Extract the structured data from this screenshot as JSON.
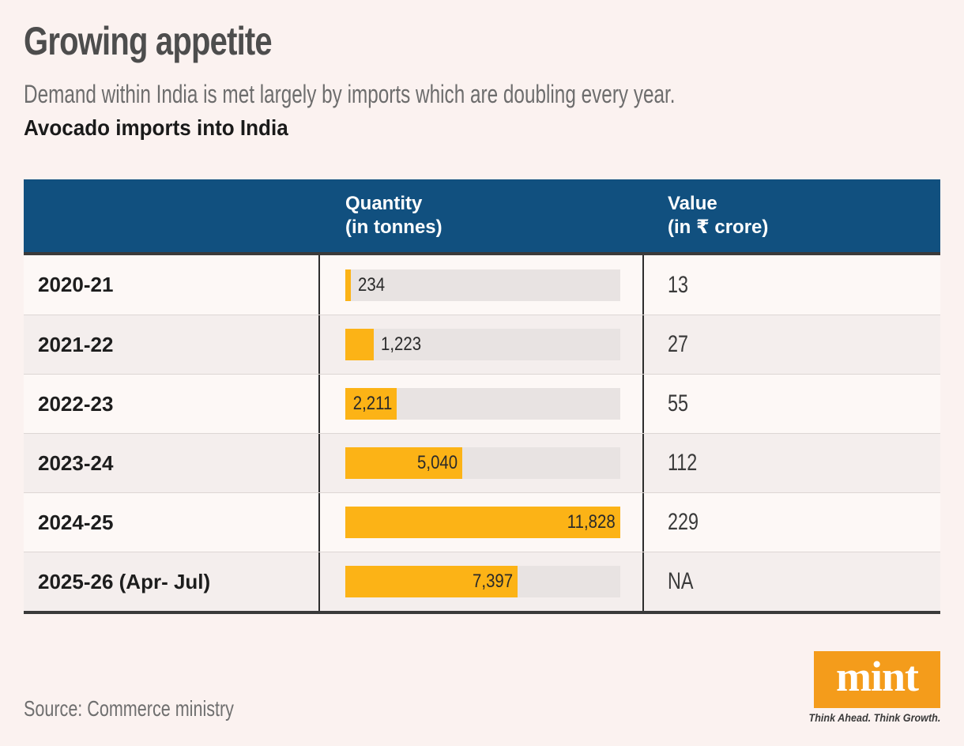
{
  "page": {
    "title": "Growing appetite",
    "subtitle": "Demand within India is met largely by imports which are doubling every year.",
    "chart_title": "Avocado imports into India",
    "source_note": "Source: Commerce ministry"
  },
  "table": {
    "header": {
      "quantity_label": "Quantity",
      "quantity_unit": "(in tonnes)",
      "value_label": "Value",
      "value_unit": "(in ₹ crore)"
    },
    "max_quantity": 11828,
    "rows": [
      {
        "year": "2020-21",
        "quantity": 234,
        "quantity_label": "234",
        "value": "13"
      },
      {
        "year": "2021-22",
        "quantity": 1223,
        "quantity_label": "1,223",
        "value": "27"
      },
      {
        "year": "2022-23",
        "quantity": 2211,
        "quantity_label": "2,211",
        "value": "55"
      },
      {
        "year": "2023-24",
        "quantity": 5040,
        "quantity_label": "5,040",
        "value": "112"
      },
      {
        "year": "2024-25",
        "quantity": 11828,
        "quantity_label": "11,828",
        "value": "229"
      },
      {
        "year": "2025-26 (Apr- Jul)",
        "quantity": 7397,
        "quantity_label": "7,397",
        "value": "NA"
      }
    ]
  },
  "branding": {
    "logo_text": "mint",
    "tagline": "Think Ahead. Think Growth."
  },
  "colors": {
    "page_bg": "#fbf2f0",
    "header_bg": "#11507f",
    "header_text": "#ffffff",
    "bar": "#fcb316",
    "bar_track": "#e8e3e2",
    "row_bg": "#fdf8f6",
    "row_alt_bg": "#f4eeed",
    "dark_border": "#3a3a3a",
    "logo_orange": "#f49c1b"
  },
  "chart_data": {
    "type": "bar",
    "orientation": "horizontal",
    "title": "Avocado imports into India",
    "categories": [
      "2020-21",
      "2021-22",
      "2022-23",
      "2023-24",
      "2024-25",
      "2025-26 (Apr- Jul)"
    ],
    "series": [
      {
        "name": "Quantity (in tonnes)",
        "values": [
          234,
          1223,
          2211,
          5040,
          11828,
          7397
        ]
      },
      {
        "name": "Value (in ₹ crore)",
        "values": [
          13,
          27,
          55,
          112,
          229,
          null
        ]
      }
    ],
    "xlim": [
      0,
      11828
    ],
    "grid": false,
    "legend_position": "table-header",
    "annotations": [
      "Value for 2025-26 (Apr- Jul) shown as NA"
    ]
  }
}
